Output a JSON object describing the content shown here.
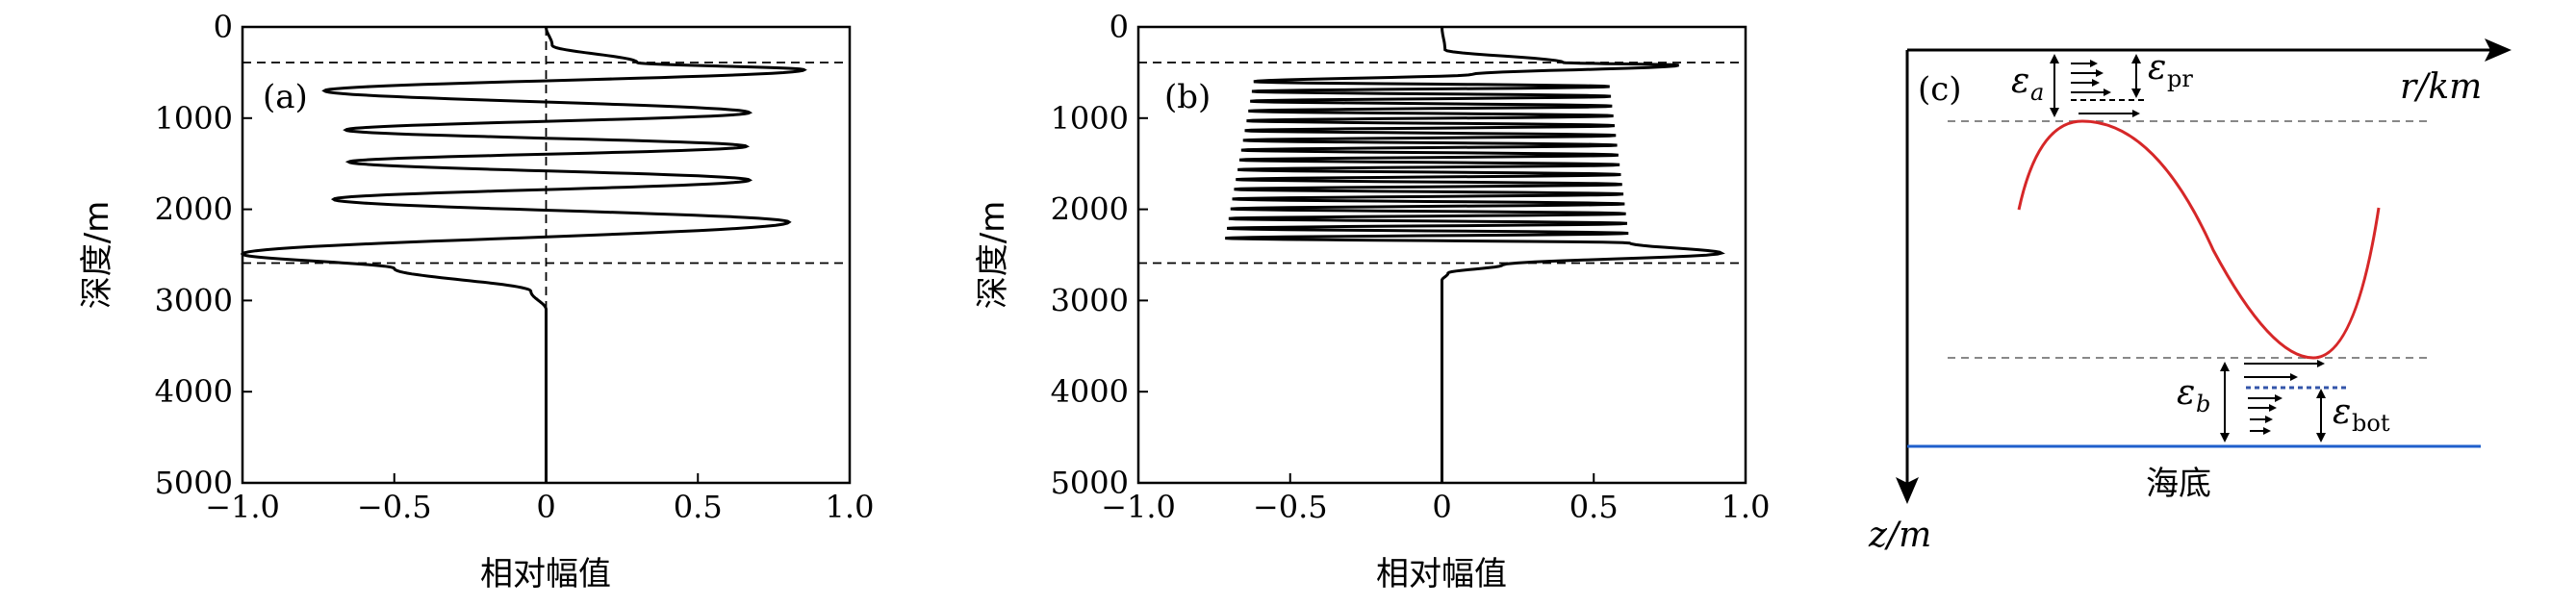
{
  "chart_data": [
    {
      "type": "line",
      "panel_label": "(a)",
      "xlabel": "相对幅值",
      "ylabel": "深度/m",
      "xlim": [
        -1.0,
        1.0
      ],
      "ylim": [
        5000,
        0
      ],
      "xticks": [
        "−1.0",
        "−0.5",
        "0",
        "0.5",
        "1.0"
      ],
      "yticks": [
        "0",
        "1000",
        "2000",
        "3000",
        "4000",
        "5000"
      ],
      "reference_lines": {
        "depths": [
          390,
          2590
        ],
        "x_zero": 0
      },
      "mode_peaks": {
        "depth": [
          0,
          200,
          390,
          470,
          700,
          940,
          1130,
          1310,
          1480,
          1680,
          1890,
          2140,
          2490,
          2650,
          2900,
          3100,
          5000
        ],
        "amplitude": [
          0,
          0.02,
          0.3,
          0.85,
          -0.73,
          0.67,
          -0.66,
          0.66,
          -0.65,
          0.67,
          -0.7,
          0.8,
          -1.0,
          -0.5,
          -0.05,
          0,
          0
        ]
      }
    },
    {
      "type": "line",
      "panel_label": "(b)",
      "xlabel": "相对幅值",
      "ylabel": "深度/m",
      "xlim": [
        -1.0,
        1.0
      ],
      "ylim": [
        5000,
        0
      ],
      "xticks": [
        "−1.0",
        "−0.5",
        "0",
        "0.5",
        "1.0"
      ],
      "yticks": [
        "0",
        "1000",
        "2000",
        "3000",
        "4000",
        "5000"
      ],
      "reference_lines": {
        "depths": [
          390,
          2590
        ],
        "x_zero": 0
      },
      "mode_peaks": {
        "depth": [
          0,
          250,
          390,
          420,
          600,
          2370,
          2480,
          2610,
          2700,
          2780,
          5000
        ],
        "amplitude": [
          0,
          0.01,
          0.4,
          0.78,
          -0.65,
          -0.72,
          0.92,
          0.2,
          0.02,
          0,
          0
        ]
      },
      "oscillation_count": 34
    },
    {
      "type": "diagram",
      "panel_label": "(c)",
      "x_axis_label": "r/km",
      "y_axis_label": "z/m",
      "seabed_label": "海底",
      "symbols": {
        "eps_a": "ε",
        "eps_a_sub": "a",
        "eps_pr": "ε",
        "eps_pr_sub": "pr",
        "eps_b": "ε",
        "eps_b_sub": "b",
        "eps_bot": "ε",
        "eps_bot_sub": "bot"
      },
      "colors": {
        "ray": "#d62728",
        "seabed": "#1f5fcc",
        "dotted": "#3355aa"
      }
    }
  ]
}
